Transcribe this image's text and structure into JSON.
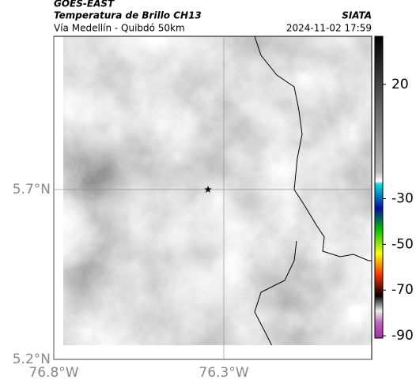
{
  "header": {
    "source": "GOES-EAST",
    "product": "Temperatura de Brillo CH13",
    "agency": "SIATA",
    "region": "Vía Medellín - Quibdó 50km",
    "timestamp": "2024-11-02 17:59"
  },
  "map": {
    "lonlim": [
      -76.8,
      -75.865
    ],
    "latlim": [
      5.2,
      6.151
    ],
    "lat_ticks": [
      {
        "value": 5.7,
        "label": "5.7°N"
      },
      {
        "value": 5.2,
        "label": "5.2°N"
      }
    ],
    "lon_ticks": [
      {
        "value": -76.8,
        "label": "76.8°W"
      },
      {
        "value": -76.3,
        "label": "76.3°W"
      }
    ]
  },
  "colorbar": {
    "clim": [
      41,
      -91
    ],
    "ticks": [
      20,
      -30,
      -50,
      -70,
      -90
    ]
  }
}
